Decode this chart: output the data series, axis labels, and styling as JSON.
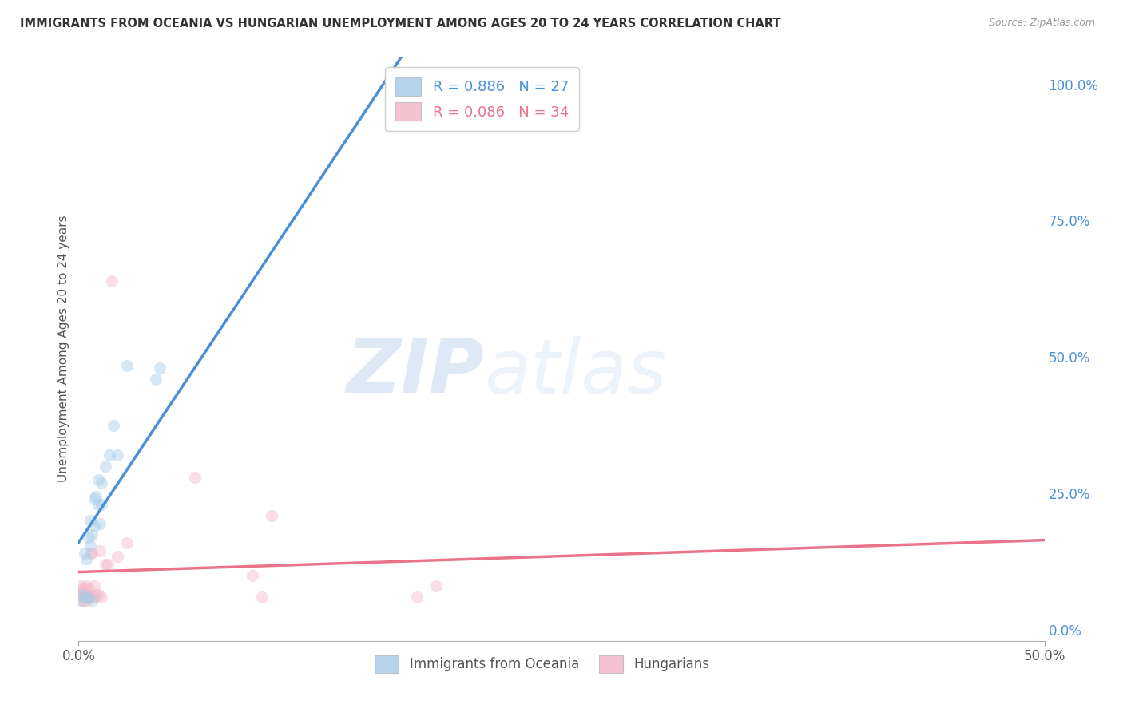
{
  "title": "IMMIGRANTS FROM OCEANIA VS HUNGARIAN UNEMPLOYMENT AMONG AGES 20 TO 24 YEARS CORRELATION CHART",
  "source": "Source: ZipAtlas.com",
  "ylabel": "Unemployment Among Ages 20 to 24 years",
  "x_tick_labels_bottom": [
    "0.0%",
    "50.0%"
  ],
  "x_tick_vals_bottom": [
    0.0,
    0.5
  ],
  "y_tick_labels_right": [
    "100.0%",
    "75.0%",
    "50.0%",
    "25.0%",
    "0.0%"
  ],
  "y_tick_vals": [
    1.0,
    0.75,
    0.5,
    0.25,
    0.0
  ],
  "xlim": [
    0.0,
    0.5
  ],
  "ylim": [
    -0.02,
    1.05
  ],
  "blue_scatter_color": "#a8cce8",
  "pink_scatter_color": "#f5b8ca",
  "blue_line_color": "#4a90d9",
  "pink_line_color": "#e8738a",
  "legend_blue_R": "R = 0.886",
  "legend_blue_N": "N = 27",
  "legend_pink_R": "R = 0.086",
  "legend_pink_N": "N = 34",
  "legend_blue_label": "Immigrants from Oceania",
  "legend_pink_label": "Hungarians",
  "watermark_zip": "ZIP",
  "watermark_atlas": "atlas",
  "grid_color": "#cccccc",
  "bg_color": "#ffffff",
  "marker_size": 110,
  "marker_alpha": 0.45,
  "line_width": 2.5,
  "blue_x": [
    0.001,
    0.002,
    0.003,
    0.003,
    0.004,
    0.005,
    0.005,
    0.006,
    0.006,
    0.007,
    0.007,
    0.008,
    0.008,
    0.009,
    0.01,
    0.01,
    0.011,
    0.012,
    0.012,
    0.014,
    0.016,
    0.018,
    0.02,
    0.025,
    0.04,
    0.042,
    0.17
  ],
  "blue_y": [
    0.055,
    0.065,
    0.06,
    0.14,
    0.13,
    0.06,
    0.17,
    0.155,
    0.2,
    0.055,
    0.175,
    0.19,
    0.24,
    0.245,
    0.23,
    0.275,
    0.195,
    0.23,
    0.27,
    0.3,
    0.32,
    0.375,
    0.32,
    0.485,
    0.46,
    0.48,
    0.97
  ],
  "pink_x": [
    0.001,
    0.001,
    0.001,
    0.002,
    0.002,
    0.002,
    0.003,
    0.003,
    0.003,
    0.004,
    0.004,
    0.004,
    0.005,
    0.005,
    0.006,
    0.006,
    0.007,
    0.008,
    0.008,
    0.009,
    0.01,
    0.011,
    0.012,
    0.014,
    0.015,
    0.017,
    0.02,
    0.025,
    0.06,
    0.09,
    0.095,
    0.1,
    0.175,
    0.185
  ],
  "pink_y": [
    0.065,
    0.07,
    0.08,
    0.055,
    0.06,
    0.075,
    0.055,
    0.065,
    0.075,
    0.055,
    0.065,
    0.08,
    0.06,
    0.075,
    0.06,
    0.14,
    0.14,
    0.06,
    0.08,
    0.065,
    0.065,
    0.145,
    0.06,
    0.12,
    0.12,
    0.64,
    0.135,
    0.16,
    0.28,
    0.1,
    0.06,
    0.21,
    0.06,
    0.08
  ]
}
